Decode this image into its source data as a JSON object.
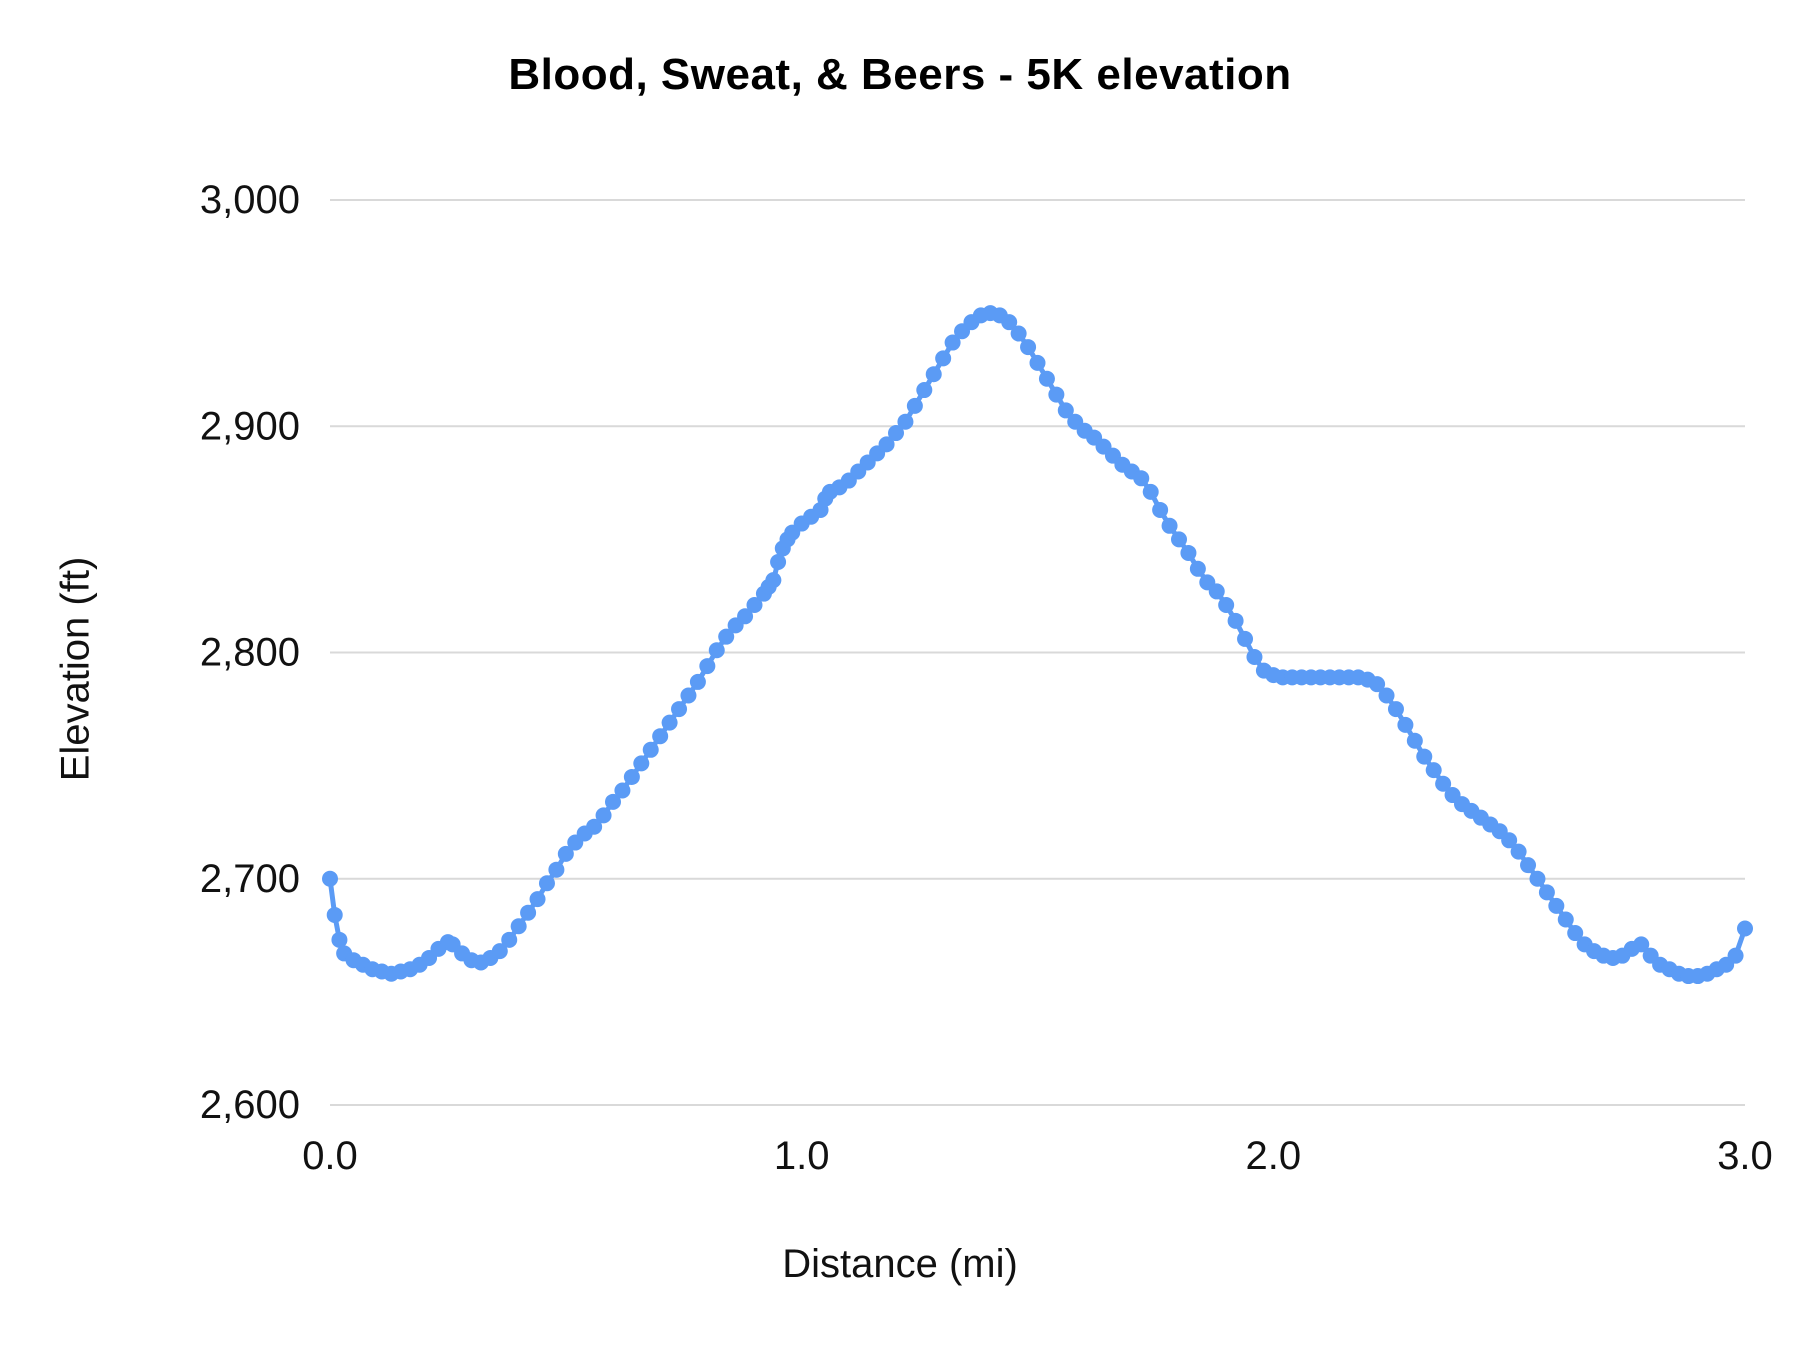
{
  "colors": {
    "series_blue": "#5b9bf5",
    "gridline": "#d9d9d9",
    "tick_text": "#111111",
    "title_text": "#000000",
    "background": "#ffffff"
  },
  "chart_data": {
    "type": "line",
    "title": "Blood, Sweat, & Beers  - 5K elevation",
    "xlabel": "Distance (mi)",
    "ylabel": "Elevation (ft)",
    "xlim": [
      0.0,
      3.0
    ],
    "ylim": [
      2600,
      3000
    ],
    "grid": "horizontal",
    "legend": "none",
    "marker_style": "filled-circle",
    "x_ticks": [
      {
        "value": 0.0,
        "label": "0.0"
      },
      {
        "value": 1.0,
        "label": "1.0"
      },
      {
        "value": 2.0,
        "label": "2.0"
      },
      {
        "value": 3.0,
        "label": "3.0"
      }
    ],
    "y_ticks": [
      {
        "value": 2600,
        "label": "2,600"
      },
      {
        "value": 2700,
        "label": "2,700"
      },
      {
        "value": 2800,
        "label": "2,800"
      },
      {
        "value": 2900,
        "label": "2,900"
      },
      {
        "value": 3000,
        "label": "3,000"
      }
    ],
    "series": [
      {
        "name": "Elevation",
        "color": "#5b9bf5",
        "points": [
          [
            0.0,
            2700
          ],
          [
            0.01,
            2684
          ],
          [
            0.02,
            2673
          ],
          [
            0.03,
            2667
          ],
          [
            0.05,
            2664
          ],
          [
            0.07,
            2662
          ],
          [
            0.09,
            2660
          ],
          [
            0.11,
            2659
          ],
          [
            0.13,
            2658
          ],
          [
            0.15,
            2659
          ],
          [
            0.17,
            2660
          ],
          [
            0.19,
            2662
          ],
          [
            0.21,
            2665
          ],
          [
            0.23,
            2669
          ],
          [
            0.25,
            2672
          ],
          [
            0.26,
            2671
          ],
          [
            0.28,
            2667
          ],
          [
            0.3,
            2664
          ],
          [
            0.32,
            2663
          ],
          [
            0.34,
            2665
          ],
          [
            0.36,
            2668
          ],
          [
            0.38,
            2673
          ],
          [
            0.4,
            2679
          ],
          [
            0.42,
            2685
          ],
          [
            0.44,
            2691
          ],
          [
            0.46,
            2698
          ],
          [
            0.48,
            2704
          ],
          [
            0.5,
            2711
          ],
          [
            0.52,
            2716
          ],
          [
            0.54,
            2720
          ],
          [
            0.56,
            2723
          ],
          [
            0.58,
            2728
          ],
          [
            0.6,
            2734
          ],
          [
            0.62,
            2739
          ],
          [
            0.64,
            2745
          ],
          [
            0.66,
            2751
          ],
          [
            0.68,
            2757
          ],
          [
            0.7,
            2763
          ],
          [
            0.72,
            2769
          ],
          [
            0.74,
            2775
          ],
          [
            0.76,
            2781
          ],
          [
            0.78,
            2787
          ],
          [
            0.8,
            2794
          ],
          [
            0.82,
            2801
          ],
          [
            0.84,
            2807
          ],
          [
            0.86,
            2812
          ],
          [
            0.88,
            2816
          ],
          [
            0.9,
            2821
          ],
          [
            0.92,
            2826
          ],
          [
            0.93,
            2829
          ],
          [
            0.94,
            2832
          ],
          [
            0.95,
            2840
          ],
          [
            0.96,
            2846
          ],
          [
            0.97,
            2850
          ],
          [
            0.98,
            2853
          ],
          [
            1.0,
            2857
          ],
          [
            1.02,
            2860
          ],
          [
            1.04,
            2863
          ],
          [
            1.05,
            2868
          ],
          [
            1.06,
            2871
          ],
          [
            1.08,
            2873
          ],
          [
            1.1,
            2876
          ],
          [
            1.12,
            2880
          ],
          [
            1.14,
            2884
          ],
          [
            1.16,
            2888
          ],
          [
            1.18,
            2892
          ],
          [
            1.2,
            2897
          ],
          [
            1.22,
            2902
          ],
          [
            1.24,
            2909
          ],
          [
            1.26,
            2916
          ],
          [
            1.28,
            2923
          ],
          [
            1.3,
            2930
          ],
          [
            1.32,
            2937
          ],
          [
            1.34,
            2942
          ],
          [
            1.36,
            2946
          ],
          [
            1.38,
            2949
          ],
          [
            1.4,
            2950
          ],
          [
            1.42,
            2949
          ],
          [
            1.44,
            2946
          ],
          [
            1.46,
            2941
          ],
          [
            1.48,
            2935
          ],
          [
            1.5,
            2928
          ],
          [
            1.52,
            2921
          ],
          [
            1.54,
            2914
          ],
          [
            1.56,
            2907
          ],
          [
            1.58,
            2902
          ],
          [
            1.6,
            2898
          ],
          [
            1.62,
            2895
          ],
          [
            1.64,
            2891
          ],
          [
            1.66,
            2887
          ],
          [
            1.68,
            2883
          ],
          [
            1.7,
            2880
          ],
          [
            1.72,
            2877
          ],
          [
            1.74,
            2871
          ],
          [
            1.76,
            2863
          ],
          [
            1.78,
            2856
          ],
          [
            1.8,
            2850
          ],
          [
            1.82,
            2844
          ],
          [
            1.84,
            2837
          ],
          [
            1.86,
            2831
          ],
          [
            1.88,
            2827
          ],
          [
            1.9,
            2821
          ],
          [
            1.92,
            2814
          ],
          [
            1.94,
            2806
          ],
          [
            1.96,
            2798
          ],
          [
            1.98,
            2792
          ],
          [
            2.0,
            2790
          ],
          [
            2.02,
            2789
          ],
          [
            2.04,
            2789
          ],
          [
            2.06,
            2789
          ],
          [
            2.08,
            2789
          ],
          [
            2.1,
            2789
          ],
          [
            2.12,
            2789
          ],
          [
            2.14,
            2789
          ],
          [
            2.16,
            2789
          ],
          [
            2.18,
            2789
          ],
          [
            2.2,
            2788
          ],
          [
            2.22,
            2786
          ],
          [
            2.24,
            2781
          ],
          [
            2.26,
            2775
          ],
          [
            2.28,
            2768
          ],
          [
            2.3,
            2761
          ],
          [
            2.32,
            2754
          ],
          [
            2.34,
            2748
          ],
          [
            2.36,
            2742
          ],
          [
            2.38,
            2737
          ],
          [
            2.4,
            2733
          ],
          [
            2.42,
            2730
          ],
          [
            2.44,
            2727
          ],
          [
            2.46,
            2724
          ],
          [
            2.48,
            2721
          ],
          [
            2.5,
            2717
          ],
          [
            2.52,
            2712
          ],
          [
            2.54,
            2706
          ],
          [
            2.56,
            2700
          ],
          [
            2.58,
            2694
          ],
          [
            2.6,
            2688
          ],
          [
            2.62,
            2682
          ],
          [
            2.64,
            2676
          ],
          [
            2.66,
            2671
          ],
          [
            2.68,
            2668
          ],
          [
            2.7,
            2666
          ],
          [
            2.72,
            2665
          ],
          [
            2.74,
            2666
          ],
          [
            2.76,
            2669
          ],
          [
            2.78,
            2671
          ],
          [
            2.8,
            2666
          ],
          [
            2.82,
            2662
          ],
          [
            2.84,
            2660
          ],
          [
            2.86,
            2658
          ],
          [
            2.88,
            2657
          ],
          [
            2.9,
            2657
          ],
          [
            2.92,
            2658
          ],
          [
            2.94,
            2660
          ],
          [
            2.96,
            2662
          ],
          [
            2.98,
            2666
          ],
          [
            3.0,
            2678
          ]
        ]
      }
    ]
  }
}
